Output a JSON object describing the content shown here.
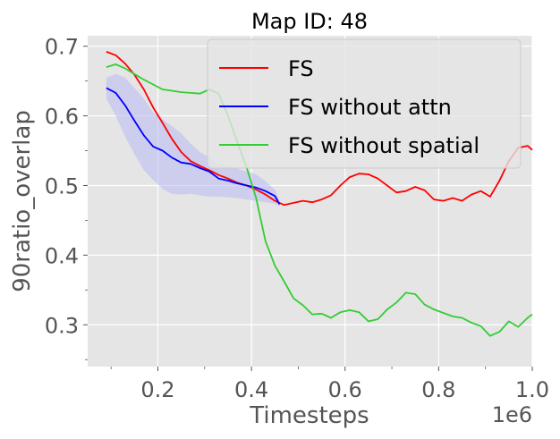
{
  "chart_data": {
    "type": "line",
    "title": "Map ID: 48",
    "xlabel": "Timesteps",
    "ylabel": "90ratio_overlap",
    "x_offset_label": "1e6",
    "xlim": [
      0.05,
      1.0
    ],
    "ylim": [
      0.24,
      0.715
    ],
    "x_ticks": [
      0.2,
      0.4,
      0.6,
      0.8,
      1.0
    ],
    "x_tick_labels": [
      "0.2",
      "0.4",
      "0.6",
      "0.8",
      "1.0"
    ],
    "y_ticks": [
      0.3,
      0.4,
      0.5,
      0.6,
      0.7
    ],
    "y_tick_labels": [
      "0.3",
      "0.4",
      "0.5",
      "0.6",
      "0.7"
    ],
    "grid": true,
    "legend_position": "top-right",
    "series": [
      {
        "name": "FS",
        "color": "#ff0000",
        "x": [
          0.09,
          0.11,
          0.13,
          0.15,
          0.17,
          0.19,
          0.21,
          0.23,
          0.25,
          0.27,
          0.29,
          0.31,
          0.33,
          0.35,
          0.37,
          0.39,
          0.41,
          0.43,
          0.45,
          0.47,
          0.49,
          0.51,
          0.53,
          0.55,
          0.57,
          0.59,
          0.61,
          0.63,
          0.65,
          0.67,
          0.69,
          0.71,
          0.73,
          0.75,
          0.77,
          0.79,
          0.81,
          0.83,
          0.85,
          0.87,
          0.89,
          0.91,
          0.93,
          0.95,
          0.97,
          0.99,
          1.0
        ],
        "y": [
          0.692,
          0.687,
          0.675,
          0.659,
          0.638,
          0.612,
          0.59,
          0.567,
          0.548,
          0.535,
          0.528,
          0.522,
          0.515,
          0.51,
          0.504,
          0.5,
          0.494,
          0.487,
          0.478,
          0.472,
          0.475,
          0.478,
          0.476,
          0.48,
          0.486,
          0.5,
          0.512,
          0.517,
          0.516,
          0.51,
          0.5,
          0.49,
          0.492,
          0.498,
          0.493,
          0.48,
          0.478,
          0.482,
          0.478,
          0.487,
          0.492,
          0.484,
          0.507,
          0.535,
          0.554,
          0.557,
          0.551
        ]
      },
      {
        "name": "FS without attn",
        "color": "#0000ff",
        "band_color": "#b9b9f4",
        "x": [
          0.09,
          0.11,
          0.13,
          0.15,
          0.17,
          0.19,
          0.21,
          0.23,
          0.25,
          0.27,
          0.29,
          0.31,
          0.33,
          0.35,
          0.37,
          0.39,
          0.41,
          0.43,
          0.45,
          0.46
        ],
        "y": [
          0.64,
          0.633,
          0.615,
          0.593,
          0.572,
          0.556,
          0.55,
          0.54,
          0.533,
          0.531,
          0.525,
          0.52,
          0.51,
          0.507,
          0.503,
          0.5,
          0.497,
          0.492,
          0.485,
          0.473
        ],
        "y_lower": [
          0.625,
          0.6,
          0.57,
          0.545,
          0.522,
          0.508,
          0.495,
          0.488,
          0.487,
          0.488,
          0.486,
          0.484,
          0.484,
          0.483,
          0.482,
          0.48,
          0.478,
          0.476,
          0.474,
          0.47
        ],
        "y_upper": [
          0.655,
          0.66,
          0.655,
          0.64,
          0.625,
          0.605,
          0.595,
          0.585,
          0.575,
          0.56,
          0.548,
          0.54,
          0.53,
          0.528,
          0.524,
          0.52,
          0.516,
          0.506,
          0.494,
          0.478
        ]
      },
      {
        "name": "FS without spatial",
        "color": "#33cc33",
        "x": [
          0.09,
          0.11,
          0.13,
          0.15,
          0.17,
          0.19,
          0.21,
          0.23,
          0.25,
          0.27,
          0.29,
          0.31,
          0.33,
          0.35,
          0.37,
          0.39,
          0.41,
          0.43,
          0.45,
          0.47,
          0.49,
          0.51,
          0.53,
          0.55,
          0.57,
          0.59,
          0.61,
          0.63,
          0.65,
          0.67,
          0.69,
          0.71,
          0.73,
          0.75,
          0.77,
          0.79,
          0.81,
          0.83,
          0.85,
          0.87,
          0.89,
          0.91,
          0.93,
          0.95,
          0.97,
          0.99,
          1.0
        ],
        "y": [
          0.67,
          0.674,
          0.668,
          0.66,
          0.652,
          0.645,
          0.638,
          0.636,
          0.634,
          0.633,
          0.632,
          0.638,
          0.632,
          0.6,
          0.562,
          0.525,
          0.482,
          0.42,
          0.385,
          0.362,
          0.338,
          0.328,
          0.315,
          0.316,
          0.31,
          0.318,
          0.321,
          0.318,
          0.305,
          0.308,
          0.322,
          0.332,
          0.346,
          0.344,
          0.329,
          0.322,
          0.317,
          0.312,
          0.31,
          0.303,
          0.298,
          0.284,
          0.29,
          0.305,
          0.297,
          0.31,
          0.315
        ]
      }
    ]
  }
}
